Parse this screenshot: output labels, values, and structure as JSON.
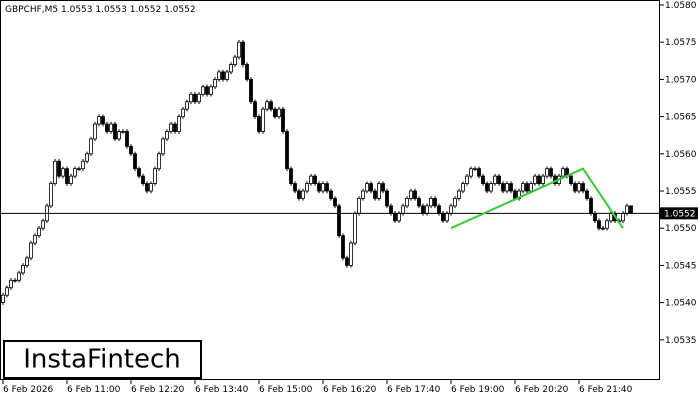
{
  "chart_data": {
    "type": "candlestick",
    "title": "GBPCHF,M5  1.0553 1.0553 1.0552 1.0552",
    "logo": "InstaFintech",
    "xlim": [
      -0.75,
      164.25
    ],
    "ylim": [
      1.05296,
      1.058
    ],
    "xticks": [
      {
        "value": 0,
        "label": "6 Feb 2026"
      },
      {
        "value": 16,
        "label": "6 Feb 11:00"
      },
      {
        "value": 32,
        "label": "6 Feb 12:20"
      },
      {
        "value": 48,
        "label": "6 Feb 13:40"
      },
      {
        "value": 64,
        "label": "6 Feb 15:00"
      },
      {
        "value": 80,
        "label": "6 Feb 16:20"
      },
      {
        "value": 96,
        "label": "6 Feb 17:40"
      },
      {
        "value": 112,
        "label": "6 Feb 19:00"
      },
      {
        "value": 128,
        "label": "6 Feb 20:20"
      },
      {
        "value": 144,
        "label": "6 Feb 21:40"
      }
    ],
    "yticks": [
      {
        "value": 1.058,
        "label": "1.0580"
      },
      {
        "value": 1.0575,
        "label": "1.0575"
      },
      {
        "value": 1.057,
        "label": "1.0570"
      },
      {
        "value": 1.0565,
        "label": "1.0565"
      },
      {
        "value": 1.056,
        "label": "1.0560"
      },
      {
        "value": 1.0555,
        "label": "1.0555"
      },
      {
        "value": 1.055,
        "label": "1.0550"
      },
      {
        "value": 1.0545,
        "label": "1.0545"
      },
      {
        "value": 1.054,
        "label": "1.0540"
      },
      {
        "value": 1.0535,
        "label": "1.0535"
      }
    ],
    "current_price": {
      "value": 1.0552,
      "label": "1.0552"
    },
    "color": "#000000",
    "pattern": {
      "color": "#32cd32",
      "x": [
        112,
        145,
        155
      ],
      "y": [
        1.055,
        1.0558,
        1.055
      ]
    },
    "open": [
      1.054,
      1.0541,
      1.0542,
      1.0543,
      1.0543,
      1.0544,
      1.0545,
      1.0546,
      1.0548,
      1.0549,
      1.055,
      1.0551,
      1.0553,
      1.0556,
      1.0559,
      1.0557,
      1.0558,
      1.0556,
      1.0557,
      1.0558,
      1.0558,
      1.0559,
      1.056,
      1.0562,
      1.0564,
      1.0565,
      1.0564,
      1.0563,
      1.0564,
      1.0562,
      1.0563,
      1.0563,
      1.0561,
      1.056,
      1.0558,
      1.0557,
      1.0556,
      1.0555,
      1.0556,
      1.0558,
      1.056,
      1.0562,
      1.0563,
      1.0564,
      1.0563,
      1.0565,
      1.0566,
      1.0567,
      1.0568,
      1.0567,
      1.0568,
      1.0569,
      1.0568,
      1.0569,
      1.057,
      1.0571,
      1.057,
      1.0571,
      1.0572,
      1.0573,
      1.0575,
      1.0572,
      1.057,
      1.0567,
      1.0565,
      1.0563,
      1.0566,
      1.0567,
      1.0566,
      1.0565,
      1.0566,
      1.0563,
      1.0558,
      1.0556,
      1.0555,
      1.0554,
      1.0555,
      1.0556,
      1.0557,
      1.0556,
      1.0555,
      1.0556,
      1.0555,
      1.0554,
      1.0553,
      1.0549,
      1.0546,
      1.0545,
      1.0548,
      1.0552,
      1.0554,
      1.0555,
      1.0556,
      1.0555,
      1.0554,
      1.0556,
      1.0555,
      1.0553,
      1.0552,
      1.0551,
      1.0552,
      1.0553,
      1.0554,
      1.0555,
      1.0554,
      1.0553,
      1.0552,
      1.0553,
      1.0554,
      1.0553,
      1.0552,
      1.0551,
      1.0552,
      1.0553,
      1.0554,
      1.0555,
      1.0556,
      1.0557,
      1.0558,
      1.0558,
      1.0557,
      1.0556,
      1.0555,
      1.0556,
      1.0557,
      1.0556,
      1.0555,
      1.0556,
      1.0555,
      1.0554,
      1.0555,
      1.0556,
      1.0555,
      1.0556,
      1.0557,
      1.0556,
      1.0557,
      1.0558,
      1.0557,
      1.0556,
      1.0557,
      1.0558,
      1.0557,
      1.0556,
      1.0555,
      1.0556,
      1.0555,
      1.0554,
      1.0552,
      1.0551,
      1.055,
      1.055,
      1.0551,
      1.0552,
      1.0551,
      1.0551,
      1.0552,
      1.0553
    ],
    "high": [
      1.05413,
      1.05423,
      1.05433,
      1.05433,
      1.05443,
      1.05453,
      1.05463,
      1.05483,
      1.05493,
      1.05503,
      1.05513,
      1.05533,
      1.05563,
      1.05593,
      1.05593,
      1.05583,
      1.05583,
      1.05573,
      1.05583,
      1.05583,
      1.05593,
      1.05603,
      1.05623,
      1.05643,
      1.05653,
      1.05653,
      1.05643,
      1.05643,
      1.05643,
      1.05633,
      1.05633,
      1.05633,
      1.05613,
      1.05603,
      1.05583,
      1.05573,
      1.05563,
      1.05563,
      1.05583,
      1.05603,
      1.05623,
      1.05633,
      1.05643,
      1.05643,
      1.05653,
      1.05663,
      1.05673,
      1.05683,
      1.05683,
      1.05683,
      1.05693,
      1.05693,
      1.05693,
      1.05703,
      1.05713,
      1.05713,
      1.05713,
      1.05723,
      1.05733,
      1.05753,
      1.05753,
      1.05723,
      1.05703,
      1.05673,
      1.05653,
      1.05663,
      1.05673,
      1.05673,
      1.05663,
      1.05663,
      1.05663,
      1.05633,
      1.05583,
      1.05563,
      1.05553,
      1.05553,
      1.05563,
      1.05573,
      1.05573,
      1.05563,
      1.05563,
      1.05563,
      1.05553,
      1.05543,
      1.05533,
      1.05493,
      1.05463,
      1.05483,
      1.05523,
      1.05543,
      1.05553,
      1.05563,
      1.05563,
      1.05553,
      1.05563,
      1.05563,
      1.05553,
      1.05533,
      1.05523,
      1.05523,
      1.05533,
      1.05543,
      1.05553,
      1.05553,
      1.05543,
      1.05533,
      1.05533,
      1.05543,
      1.05543,
      1.05533,
      1.05523,
      1.05523,
      1.05533,
      1.05543,
      1.05553,
      1.05563,
      1.05573,
      1.05583,
      1.05583,
      1.05583,
      1.05573,
      1.05563,
      1.05563,
      1.05573,
      1.05573,
      1.05563,
      1.05563,
      1.05563,
      1.05553,
      1.05553,
      1.05563,
      1.05563,
      1.05563,
      1.05573,
      1.05573,
      1.05573,
      1.05583,
      1.05583,
      1.05573,
      1.05573,
      1.05583,
      1.05583,
      1.05573,
      1.05563,
      1.05563,
      1.05563,
      1.05553,
      1.05543,
      1.05523,
      1.05513,
      1.05503,
      1.05513,
      1.05523,
      1.05523,
      1.05513,
      1.05523,
      1.05533,
      1.0553
    ],
    "low": [
      1.05397,
      1.05407,
      1.05417,
      1.05427,
      1.05427,
      1.05437,
      1.05447,
      1.05457,
      1.05477,
      1.05487,
      1.05497,
      1.05507,
      1.05527,
      1.05557,
      1.05567,
      1.05567,
      1.05557,
      1.05557,
      1.05567,
      1.05577,
      1.05577,
      1.05587,
      1.05597,
      1.05617,
      1.05637,
      1.05637,
      1.05627,
      1.05627,
      1.05617,
      1.05617,
      1.05627,
      1.05607,
      1.05597,
      1.05577,
      1.05567,
      1.05557,
      1.05547,
      1.05547,
      1.05557,
      1.05577,
      1.05597,
      1.05617,
      1.05627,
      1.05627,
      1.05627,
      1.05647,
      1.05657,
      1.05667,
      1.05667,
      1.05667,
      1.05677,
      1.05677,
      1.05677,
      1.05687,
      1.05697,
      1.05697,
      1.05697,
      1.05707,
      1.05717,
      1.05727,
      1.05717,
      1.05697,
      1.05667,
      1.05647,
      1.05627,
      1.05627,
      1.05657,
      1.05657,
      1.05647,
      1.05647,
      1.05627,
      1.05577,
      1.05557,
      1.05547,
      1.05537,
      1.05537,
      1.05547,
      1.05557,
      1.05557,
      1.05547,
      1.05547,
      1.05547,
      1.05537,
      1.05527,
      1.05487,
      1.05457,
      1.05447,
      1.05447,
      1.05477,
      1.05517,
      1.05537,
      1.05547,
      1.05547,
      1.05537,
      1.05537,
      1.05547,
      1.05527,
      1.05517,
      1.05507,
      1.05507,
      1.05517,
      1.05527,
      1.05537,
      1.05537,
      1.05527,
      1.05517,
      1.05517,
      1.05527,
      1.05527,
      1.05517,
      1.05507,
      1.05507,
      1.05517,
      1.05527,
      1.05537,
      1.05547,
      1.05557,
      1.05567,
      1.05577,
      1.05567,
      1.05557,
      1.05547,
      1.05547,
      1.05557,
      1.05557,
      1.05547,
      1.05547,
      1.05547,
      1.05537,
      1.05537,
      1.05547,
      1.05547,
      1.05547,
      1.05557,
      1.05557,
      1.05557,
      1.05567,
      1.05567,
      1.05557,
      1.05557,
      1.05567,
      1.05567,
      1.05557,
      1.05547,
      1.05547,
      1.05547,
      1.05537,
      1.05517,
      1.05507,
      1.05497,
      1.05497,
      1.05497,
      1.05507,
      1.05507,
      1.05507,
      1.05507,
      1.05517,
      1.0552
    ],
    "close": [
      1.0541,
      1.0542,
      1.0543,
      1.0543,
      1.0544,
      1.0545,
      1.0546,
      1.0548,
      1.0549,
      1.055,
      1.0551,
      1.0553,
      1.0556,
      1.0559,
      1.0557,
      1.0558,
      1.0556,
      1.0557,
      1.0558,
      1.0558,
      1.0559,
      1.056,
      1.0562,
      1.0564,
      1.0565,
      1.0564,
      1.0563,
      1.0564,
      1.0562,
      1.0563,
      1.0563,
      1.0561,
      1.056,
      1.0558,
      1.0557,
      1.0556,
      1.0555,
      1.0556,
      1.0558,
      1.056,
      1.0562,
      1.0563,
      1.0564,
      1.0563,
      1.0565,
      1.0566,
      1.0567,
      1.0568,
      1.0567,
      1.0568,
      1.0569,
      1.0568,
      1.0569,
      1.057,
      1.0571,
      1.057,
      1.0571,
      1.0572,
      1.0573,
      1.0575,
      1.0572,
      1.057,
      1.0567,
      1.0565,
      1.0563,
      1.0566,
      1.0567,
      1.0566,
      1.0565,
      1.0566,
      1.0563,
      1.0558,
      1.0556,
      1.0555,
      1.0554,
      1.0555,
      1.0556,
      1.0557,
      1.0556,
      1.0555,
      1.0556,
      1.0555,
      1.0554,
      1.0553,
      1.0549,
      1.0546,
      1.0545,
      1.0548,
      1.0552,
      1.0554,
      1.0555,
      1.0556,
      1.0555,
      1.0554,
      1.0556,
      1.0555,
      1.0553,
      1.0552,
      1.0551,
      1.0552,
      1.0553,
      1.0554,
      1.0555,
      1.0554,
      1.0553,
      1.0552,
      1.0553,
      1.0554,
      1.0553,
      1.0552,
      1.0551,
      1.0552,
      1.0553,
      1.0554,
      1.0555,
      1.0556,
      1.0557,
      1.0558,
      1.0558,
      1.0557,
      1.0556,
      1.0555,
      1.0556,
      1.0557,
      1.0556,
      1.0555,
      1.0556,
      1.0555,
      1.0554,
      1.0555,
      1.0556,
      1.0555,
      1.0556,
      1.0557,
      1.0556,
      1.0557,
      1.0558,
      1.0557,
      1.0556,
      1.0557,
      1.0558,
      1.0557,
      1.0556,
      1.0555,
      1.0556,
      1.0555,
      1.0554,
      1.0552,
      1.0551,
      1.055,
      1.055,
      1.0551,
      1.0552,
      1.0551,
      1.0551,
      1.0552,
      1.0553,
      1.0552
    ]
  }
}
